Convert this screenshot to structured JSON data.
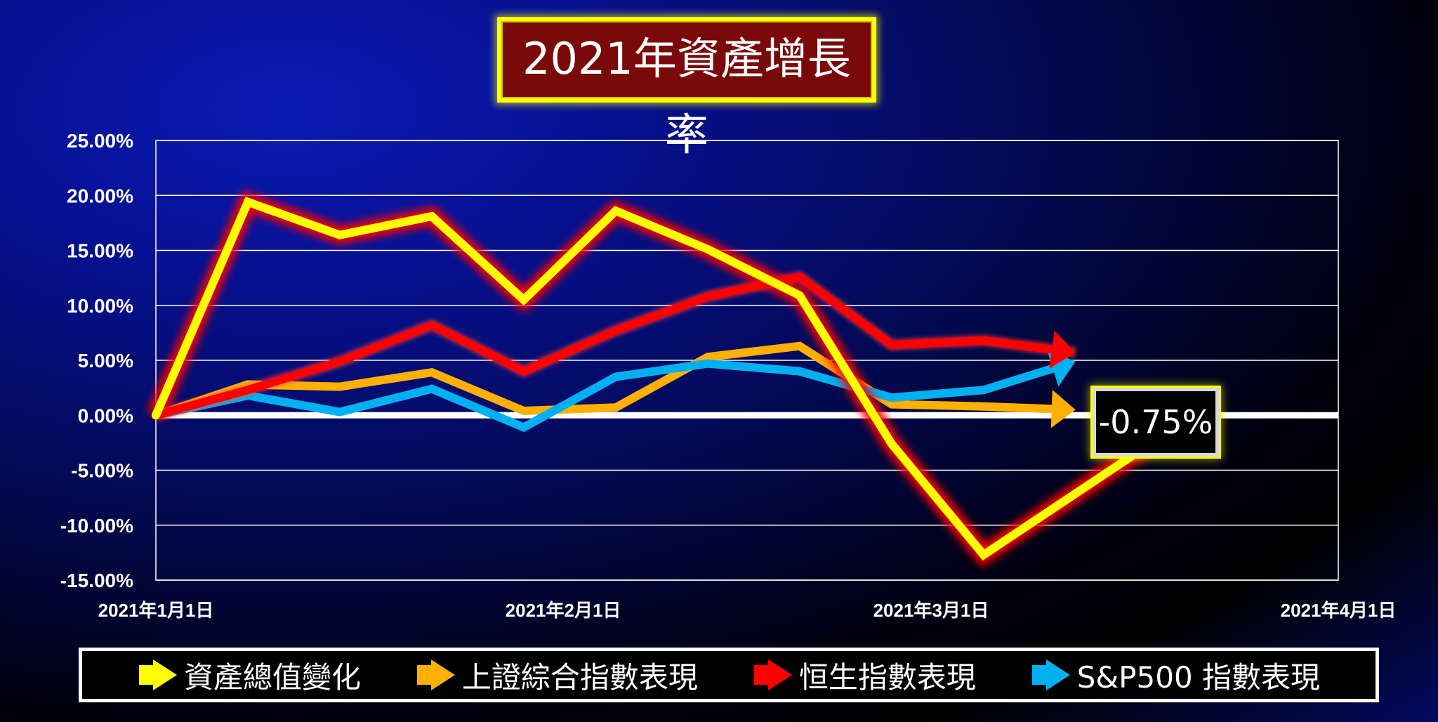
{
  "title": "2021年資產增長率",
  "end_label": "-0.75%",
  "chart_data": {
    "type": "line",
    "title": "2021年資產增長率",
    "xlabel": "",
    "ylabel": "",
    "ylim": [
      -15,
      25
    ],
    "yticks": [
      25,
      20,
      15,
      10,
      5,
      0,
      -5,
      -10,
      -15
    ],
    "ytick_labels": [
      "25.00%",
      "20.00%",
      "15.00%",
      "10.00%",
      "5.00%",
      "0.00%",
      "-5.00%",
      "-10.00%",
      "-15.00%"
    ],
    "xlim": [
      "2021-01-01",
      "2021-04-01"
    ],
    "xticks": [
      "2021-01-01",
      "2021-02-01",
      "2021-03-01",
      "2021-04-01"
    ],
    "xtick_labels": [
      "2021年1月1日",
      "2021年2月1日",
      "2021年3月1日",
      "2021年4月1日"
    ],
    "grid": true,
    "legend_position": "bottom",
    "x": [
      "2021-01-01",
      "2021-01-08",
      "2021-01-15",
      "2021-01-22",
      "2021-01-29",
      "2021-02-05",
      "2021-02-12",
      "2021-02-19",
      "2021-02-26",
      "2021-03-05",
      "2021-03-12"
    ],
    "series": [
      {
        "name": "資產總值變化",
        "color": "#ffff00",
        "glow": "#ff0000",
        "values": [
          0,
          19.4,
          16.4,
          18.1,
          10.5,
          18.6,
          15.1,
          10.9,
          -2.6,
          -12.7,
          null
        ],
        "end": {
          "x": "2021-03-20",
          "y": -0.75
        }
      },
      {
        "name": "上證綜合指數表現",
        "color": "#ffb000",
        "values": [
          0,
          2.8,
          2.6,
          3.9,
          0.4,
          0.7,
          5.3,
          6.3,
          1.0,
          0.8,
          0.5
        ]
      },
      {
        "name": "恒生指數表現",
        "color": "#ff0000",
        "values": [
          0,
          2.3,
          4.9,
          8.2,
          4.0,
          7.7,
          10.8,
          12.6,
          6.4,
          6.8,
          5.7
        ]
      },
      {
        "name": "S&P500 指數表現",
        "color": "#00b0f0",
        "values": [
          0,
          1.8,
          0.3,
          2.4,
          -1.1,
          3.5,
          4.7,
          4.0,
          1.6,
          2.3,
          4.9
        ]
      }
    ]
  },
  "legend": {
    "items": [
      {
        "label": "資產總值變化",
        "color": "#ffff00"
      },
      {
        "label": "上證綜合指數表現",
        "color": "#ffb000"
      },
      {
        "label": "恒生指數表現",
        "color": "#ff0000"
      },
      {
        "label": "S&P500 指數表現",
        "color": "#00b0f0"
      }
    ]
  }
}
